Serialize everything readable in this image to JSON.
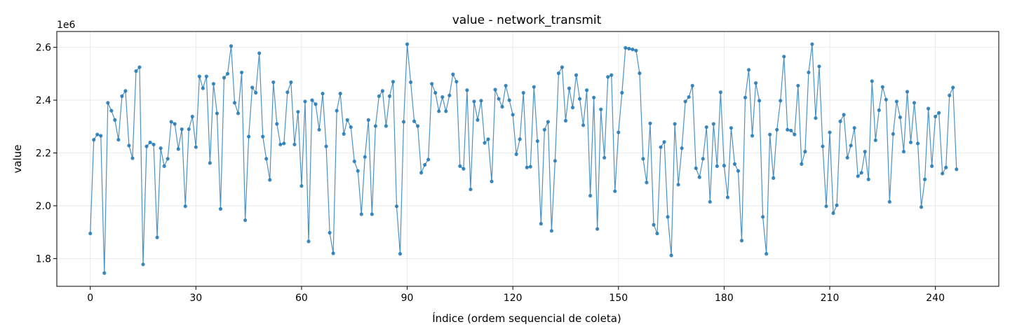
{
  "chart_data": {
    "type": "line",
    "title": "value - network_transmit",
    "xlabel": "Índice (ordem sequencial de coleta)",
    "ylabel": "value",
    "y_offset_label": "1e6",
    "xlim": [
      -9.5,
      258
    ],
    "ylim": [
      1.695,
      2.66
    ],
    "x_ticks": [
      0,
      30,
      60,
      90,
      120,
      150,
      180,
      210,
      240
    ],
    "y_ticks": [
      1.8,
      2.0,
      2.2,
      2.4,
      2.6
    ],
    "y_tick_labels": [
      "1.8",
      "2.0",
      "2.2",
      "2.4",
      "2.6"
    ],
    "grid": true,
    "markers": true,
    "series": [
      {
        "color": "#1f77b4",
        "x_start": 0,
        "values": [
          1.895,
          2.25,
          2.27,
          2.265,
          1.745,
          2.39,
          2.36,
          2.325,
          2.25,
          2.415,
          2.435,
          2.228,
          2.18,
          2.51,
          2.525,
          1.778,
          2.225,
          2.24,
          2.232,
          1.88,
          2.218,
          2.15,
          2.178,
          2.318,
          2.31,
          2.215,
          2.29,
          1.998,
          2.29,
          2.338,
          2.222,
          2.49,
          2.445,
          2.49,
          2.162,
          2.462,
          2.35,
          1.988,
          2.485,
          2.5,
          2.605,
          2.39,
          2.35,
          2.505,
          1.945,
          2.262,
          2.448,
          2.428,
          2.578,
          2.262,
          2.178,
          2.098,
          2.468,
          2.31,
          2.232,
          2.236,
          2.43,
          2.468,
          2.232,
          2.356,
          2.075,
          2.395,
          1.865,
          2.4,
          2.385,
          2.288,
          2.425,
          2.225,
          1.898,
          1.82,
          2.36,
          2.425,
          2.272,
          2.325,
          2.298,
          2.168,
          2.132,
          1.968,
          2.185,
          2.325,
          1.968,
          2.302,
          2.415,
          2.435,
          2.302,
          2.415,
          2.47,
          1.998,
          1.818,
          2.318,
          2.612,
          2.468,
          2.32,
          2.302,
          2.125,
          2.155,
          2.175,
          2.462,
          2.428,
          2.358,
          2.412,
          2.358,
          2.418,
          2.498,
          2.47,
          2.15,
          2.14,
          2.438,
          2.062,
          2.395,
          2.325,
          2.398,
          2.238,
          2.252,
          2.092,
          2.44,
          2.405,
          2.375,
          2.455,
          2.4,
          2.345,
          2.195,
          2.252,
          2.428,
          2.145,
          2.148,
          2.45,
          2.245,
          1.932,
          2.288,
          2.318,
          1.905,
          2.17,
          2.502,
          2.525,
          2.322,
          2.445,
          2.372,
          2.495,
          2.405,
          2.305,
          2.438,
          2.038,
          2.41,
          1.912,
          2.365,
          2.182,
          2.488,
          2.495,
          2.055,
          2.278,
          2.428,
          2.598,
          2.595,
          2.592,
          2.588,
          2.502,
          2.178,
          2.088,
          2.312,
          1.928,
          1.895,
          2.222,
          2.242,
          1.958,
          1.812,
          2.31,
          2.08,
          2.218,
          2.395,
          2.412,
          2.455,
          2.142,
          2.108,
          2.178,
          2.298,
          2.015,
          2.31,
          2.15,
          2.43,
          2.152,
          2.032,
          2.295,
          2.158,
          2.132,
          1.868,
          2.41,
          2.515,
          2.265,
          2.465,
          2.398,
          1.958,
          1.818,
          2.27,
          2.105,
          2.288,
          2.398,
          2.565,
          2.288,
          2.285,
          2.27,
          2.455,
          2.158,
          2.205,
          2.505,
          2.612,
          2.332,
          2.528,
          2.225,
          1.998,
          2.278,
          1.972,
          2.002,
          2.32,
          2.345,
          2.182,
          2.228,
          2.295,
          2.112,
          2.125,
          2.205,
          2.1,
          2.472,
          2.248,
          2.362,
          2.45,
          2.402,
          2.015,
          2.272,
          2.395,
          2.335,
          2.205,
          2.432,
          2.24,
          2.39,
          2.236,
          1.995,
          2.1,
          2.368,
          2.15,
          2.338,
          2.352,
          2.122,
          2.145,
          2.418,
          2.448,
          2.138
        ]
      }
    ]
  }
}
